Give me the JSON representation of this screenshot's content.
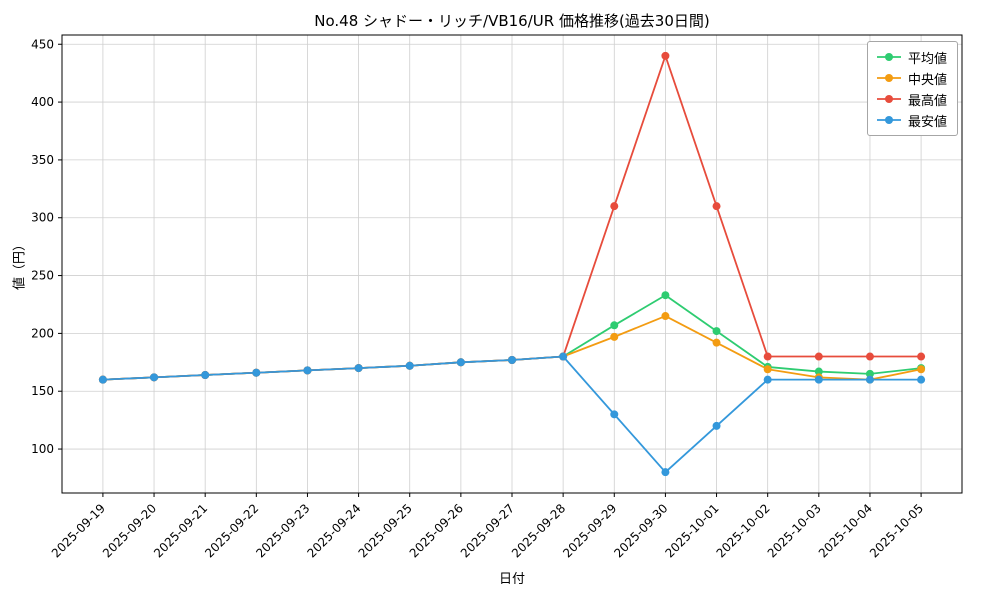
{
  "chart_data": {
    "type": "line",
    "title": "No.48 シャドー・リッチ/VB16/UR 価格推移(過去30日間)",
    "xlabel": "日付",
    "ylabel": "値（円）",
    "x": [
      "2025-09-19",
      "2025-09-20",
      "2025-09-21",
      "2025-09-22",
      "2025-09-23",
      "2025-09-24",
      "2025-09-25",
      "2025-09-26",
      "2025-09-27",
      "2025-09-28",
      "2025-09-29",
      "2025-09-30",
      "2025-10-01",
      "2025-10-02",
      "2025-10-03",
      "2025-10-04",
      "2025-10-05"
    ],
    "ylim": [
      62,
      458
    ],
    "yticks": [
      100,
      150,
      200,
      250,
      300,
      350,
      400,
      450
    ],
    "grid": true,
    "legend_position": "upper right",
    "series": [
      {
        "key": "average",
        "name": "平均値",
        "color": "#2ecc71",
        "values": [
          160,
          162,
          164,
          166,
          168,
          170,
          172,
          175,
          177,
          180,
          207,
          233,
          202,
          171,
          167,
          165,
          170
        ]
      },
      {
        "key": "median",
        "name": "中央値",
        "color": "#f39c12",
        "values": [
          160,
          162,
          164,
          166,
          168,
          170,
          172,
          175,
          177,
          180,
          197,
          215,
          192,
          169,
          162,
          160,
          169
        ]
      },
      {
        "key": "max",
        "name": "最高値",
        "color": "#e74c3c",
        "values": [
          160,
          162,
          164,
          166,
          168,
          170,
          172,
          175,
          177,
          180,
          310,
          440,
          310,
          180,
          180,
          180,
          180
        ]
      },
      {
        "key": "min",
        "name": "最安値",
        "color": "#3498db",
        "values": [
          160,
          162,
          164,
          166,
          168,
          170,
          172,
          175,
          177,
          180,
          130,
          80,
          120,
          160,
          160,
          160,
          160
        ]
      }
    ]
  }
}
